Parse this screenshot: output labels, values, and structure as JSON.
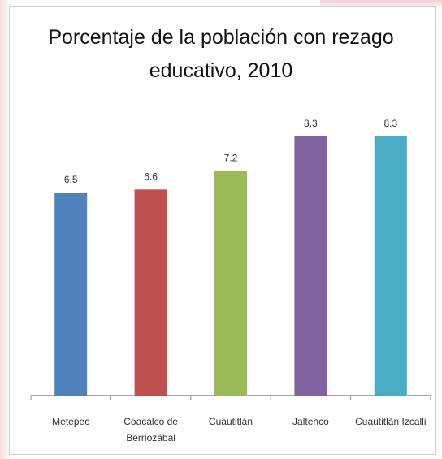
{
  "chart_data": {
    "type": "bar",
    "title_lines": [
      "Porcentaje de la población con rezago",
      "educativo, 2010"
    ],
    "categories": [
      [
        "Metepec"
      ],
      [
        "Coacalco de",
        "Berriozábal"
      ],
      [
        "Cuautitlán"
      ],
      [
        "Jaltenco"
      ],
      [
        "Cuautitlán Izcalli"
      ]
    ],
    "values": [
      6.5,
      6.6,
      7.2,
      8.3,
      8.3
    ],
    "data_labels": [
      "6.5",
      "6.6",
      "7.2",
      "8.3",
      "8.3"
    ],
    "colors": [
      "#4f81bd",
      "#c0504d",
      "#9bbb59",
      "#8064a2",
      "#4bacc6"
    ],
    "axis_color": "#8c8c8c",
    "ylim": [
      0,
      8.3
    ],
    "grid": false,
    "legend": false
  }
}
